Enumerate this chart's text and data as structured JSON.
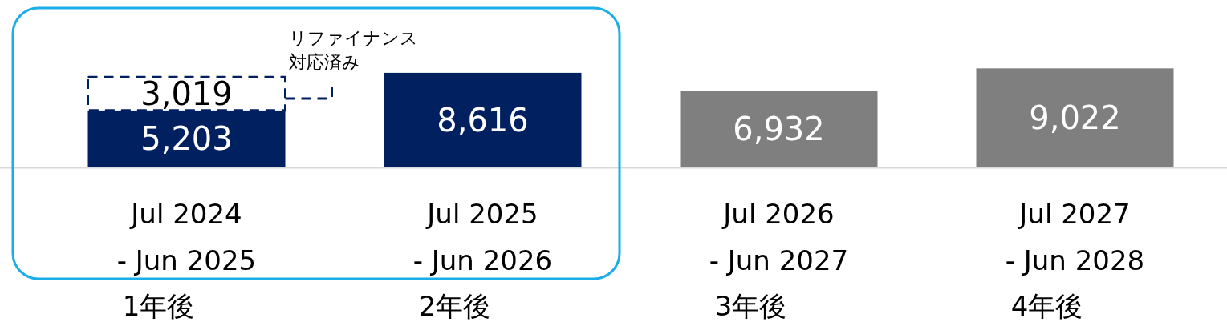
{
  "chart_data": {
    "type": "bar",
    "stacked": true,
    "categories": [
      "Jul 2024\n- Jun 2025\n1年後",
      "Jul 2025\n- Jun 2026\n2年後",
      "Jul 2026\n- Jun 2027\n3年後",
      "Jul 2027\n- Jun 2028\n4年後"
    ],
    "series": [
      {
        "colors": [
          "#002060",
          "#002060",
          "#7f7f7f",
          "#7f7f7f"
        ],
        "values": [
          5203,
          8616,
          6932,
          9022
        ],
        "value_labels": [
          "5,203",
          "8,616",
          "6,932",
          "9,022"
        ]
      },
      {
        "color": "#002060",
        "line_style": "dashed",
        "values": [
          3019,
          null,
          null,
          null
        ],
        "value_labels": [
          "3,019",
          null,
          null,
          null
        ]
      }
    ],
    "annotations": [
      "リファイナンス",
      "対応済み"
    ]
  }
}
